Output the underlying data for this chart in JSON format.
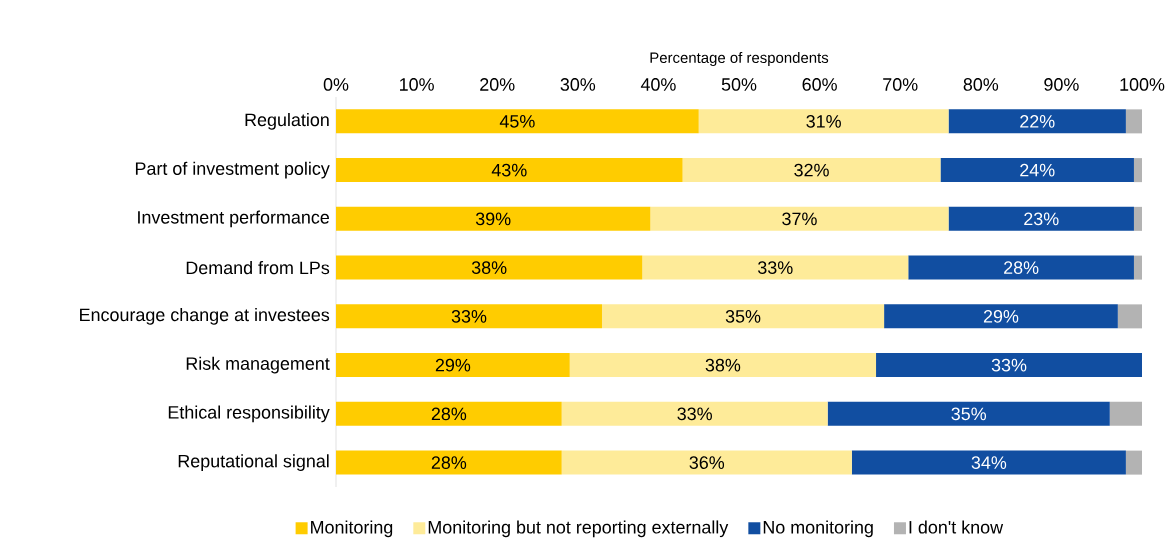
{
  "chart_data": {
    "type": "bar",
    "orientation": "horizontal",
    "stacked": true,
    "xlabel": "Percentage of respondents",
    "categories": [
      "Regulation",
      "Part of investment policy",
      "Investment performance",
      "Demand from LPs",
      "Encourage change at investees",
      "Risk management",
      "Ethical responsibility",
      "Reputational signal"
    ],
    "series": [
      {
        "name": "Monitoring",
        "color": "#ffcc00",
        "values": [
          45,
          43,
          39,
          38,
          33,
          29,
          28,
          28
        ],
        "value_labels": [
          "45%",
          "43%",
          "39%",
          "38%",
          "33%",
          "29%",
          "28%",
          "28%"
        ]
      },
      {
        "name": "Monitoring but not reporting externally",
        "color": "#feeb99",
        "values": [
          31,
          32,
          37,
          33,
          35,
          38,
          33,
          36
        ],
        "value_labels": [
          "31%",
          "32%",
          "37%",
          "33%",
          "35%",
          "38%",
          "33%",
          "36%"
        ]
      },
      {
        "name": "No monitoring",
        "color": "#114ea1",
        "values": [
          22,
          24,
          23,
          28,
          29,
          33,
          35,
          34
        ],
        "value_labels": [
          "22%",
          "24%",
          "23%",
          "28%",
          "29%",
          "33%",
          "35%",
          "34%"
        ]
      },
      {
        "name": "I don't know",
        "color": "#b3b3b3",
        "values": [
          2,
          1,
          1,
          1,
          3,
          0,
          4,
          2
        ],
        "value_labels": [
          null,
          null,
          null,
          null,
          null,
          null,
          null,
          null
        ]
      }
    ],
    "xlim": [
      0,
      100
    ],
    "xticks": [
      {
        "value": 0,
        "label": "0%"
      },
      {
        "value": 10,
        "label": "10%"
      },
      {
        "value": 20,
        "label": "20%"
      },
      {
        "value": 30,
        "label": "30%"
      },
      {
        "value": 40,
        "label": "40%"
      },
      {
        "value": 50,
        "label": "50%"
      },
      {
        "value": 60,
        "label": "60%"
      },
      {
        "value": 70,
        "label": "70%"
      },
      {
        "value": 80,
        "label": "80%"
      },
      {
        "value": 90,
        "label": "90%"
      },
      {
        "value": 100,
        "label": "100%"
      }
    ],
    "legend": "bottom"
  }
}
